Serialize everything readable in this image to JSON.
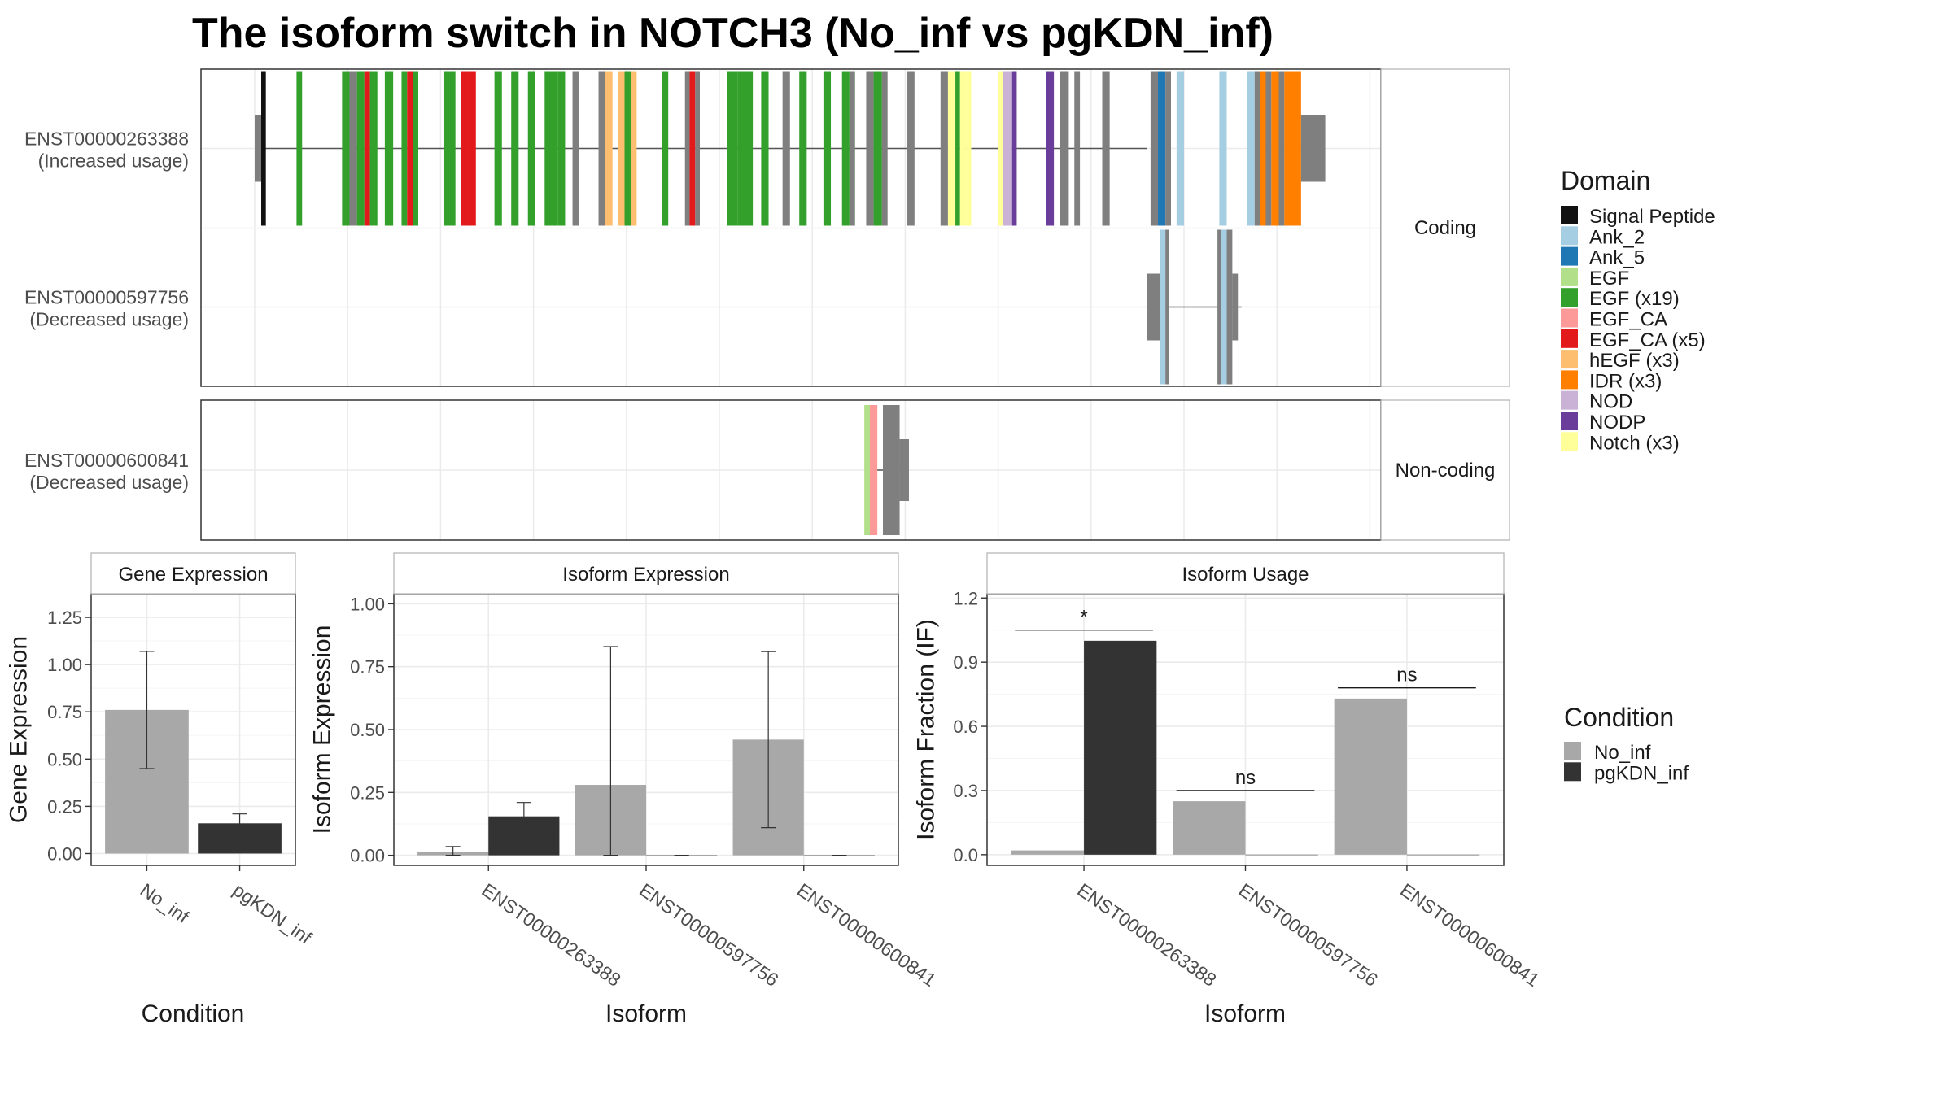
{
  "title": "The isoform switch in NOTCH3 (No_inf vs pgKDN_inf)",
  "colors": {
    "no_inf": "#a8a8a8",
    "pgkdn_inf": "#333333",
    "exon": "#7f7f7f",
    "intron": "#555555",
    "grid": "#ebebeb",
    "border": "#333333"
  },
  "structure": {
    "coord_range": [
      0,
      100
    ],
    "facets": [
      {
        "label": "Coding",
        "tracks": 2
      },
      {
        "label": "Non-coding",
        "tracks": 1
      }
    ],
    "transcripts": [
      {
        "id": "ENST00000263388",
        "usage": "(Increased usage)",
        "facet": 0,
        "track": 0,
        "intron": [
          0,
          96
        ],
        "exons": [
          {
            "s": 0,
            "e": 0.7,
            "t": "utr"
          },
          {
            "s": 0.7,
            "e": 1.2,
            "d": "Signal Peptide"
          },
          {
            "s": 4.5,
            "e": 5.1,
            "d": "EGF (x19)"
          },
          {
            "s": 9.4,
            "e": 10.2,
            "d": "EGF (x19)"
          },
          {
            "s": 10.2,
            "e": 11.0
          },
          {
            "s": 11.0,
            "e": 11.8,
            "d": "EGF (x19)"
          },
          {
            "s": 11.8,
            "e": 12.4,
            "d": "EGF_CA (x5)"
          },
          {
            "s": 12.4,
            "e": 13.2,
            "d": "EGF (x19)"
          },
          {
            "s": 14.0,
            "e": 14.9,
            "d": "EGF (x19)"
          },
          {
            "s": 15.8,
            "e": 16.4,
            "d": "EGF (x19)"
          },
          {
            "s": 16.4,
            "e": 17.0,
            "d": "EGF_CA (x5)"
          },
          {
            "s": 17.0,
            "e": 17.6,
            "d": "EGF (x19)"
          },
          {
            "s": 20.4,
            "e": 21.6,
            "d": "EGF (x19)"
          },
          {
            "s": 22.2,
            "e": 22.9,
            "d": "EGF_CA (x5)"
          },
          {
            "s": 22.9,
            "e": 23.8,
            "d": "EGF_CA (x5)"
          },
          {
            "s": 25.8,
            "e": 26.6,
            "d": "EGF (x19)"
          },
          {
            "s": 27.6,
            "e": 28.4,
            "d": "EGF (x19)"
          },
          {
            "s": 29.4,
            "e": 30.2,
            "d": "EGF (x19)"
          },
          {
            "s": 31.2,
            "e": 32.6,
            "d": "EGF (x19)"
          },
          {
            "s": 32.6,
            "e": 33.4,
            "d": "EGF (x19)"
          },
          {
            "s": 34.2,
            "e": 34.9
          },
          {
            "s": 37.0,
            "e": 37.7
          },
          {
            "s": 37.7,
            "e": 38.5,
            "d": "hEGF (x3)"
          },
          {
            "s": 39.1,
            "e": 39.8,
            "d": "hEGF (x3)"
          },
          {
            "s": 39.8,
            "e": 40.5,
            "d": "EGF (x19)"
          },
          {
            "s": 40.5,
            "e": 41.1,
            "d": "hEGF (x3)"
          },
          {
            "s": 43.8,
            "e": 44.5,
            "d": "EGF (x19)"
          },
          {
            "s": 46.3,
            "e": 46.8
          },
          {
            "s": 46.8,
            "e": 47.4,
            "d": "EGF_CA (x5)"
          },
          {
            "s": 47.4,
            "e": 47.9
          },
          {
            "s": 50.8,
            "e": 52.0,
            "d": "EGF (x19)"
          },
          {
            "s": 52.0,
            "e": 52.8,
            "d": "EGF (x19)"
          },
          {
            "s": 52.8,
            "e": 53.6,
            "d": "EGF (x19)"
          },
          {
            "s": 54.5,
            "e": 55.3,
            "d": "EGF (x19)"
          },
          {
            "s": 56.8,
            "e": 57.6
          },
          {
            "s": 58.6,
            "e": 59.4,
            "d": "EGF (x19)"
          },
          {
            "s": 61.2,
            "e": 62.0,
            "d": "EGF (x19)"
          },
          {
            "s": 63.2,
            "e": 64.0,
            "d": "EGF (x19)"
          },
          {
            "s": 64.0,
            "e": 64.6
          },
          {
            "s": 65.8,
            "e": 66.6
          },
          {
            "s": 66.6,
            "e": 67.5,
            "d": "EGF (x19)"
          },
          {
            "s": 67.5,
            "e": 68.1
          },
          {
            "s": 70.2,
            "e": 71.0
          },
          {
            "s": 73.8,
            "e": 74.6
          },
          {
            "s": 74.6,
            "e": 75.4,
            "d": "Notch (x3)"
          },
          {
            "s": 75.4,
            "e": 75.9,
            "d": "EGF (x19)"
          },
          {
            "s": 75.9,
            "e": 76.6,
            "d": "Notch (x3)"
          },
          {
            "s": 76.6,
            "e": 77.1,
            "d": "Notch (x3)"
          },
          {
            "s": 80.0,
            "e": 80.5,
            "d": "Notch (x3)"
          },
          {
            "s": 80.5,
            "e": 81.5,
            "d": "NOD"
          },
          {
            "s": 81.5,
            "e": 82.0,
            "d": "NODP"
          },
          {
            "s": 85.2,
            "e": 86.0,
            "d": "NODP"
          },
          {
            "s": 86.6,
            "e": 87.6
          },
          {
            "s": 88.2,
            "e": 88.8
          },
          {
            "s": 91.2,
            "e": 92.0
          },
          {
            "s": 96.4,
            "e": 97.2
          },
          {
            "s": 97.2,
            "e": 98.0,
            "d": "Ank_5"
          },
          {
            "s": 98.0,
            "e": 98.6
          },
          {
            "s": 99.2,
            "e": 100.0,
            "d": "Ank_2"
          },
          {
            "s": 103.8,
            "e": 104.6,
            "d": "Ank_2"
          },
          {
            "s": 106.8,
            "e": 107.6,
            "d": "Ank_2"
          },
          {
            "s": 107.6,
            "e": 108.2
          },
          {
            "s": 108.2,
            "e": 108.8,
            "d": "IDR (x3)"
          },
          {
            "s": 108.8,
            "e": 109.4
          },
          {
            "s": 109.4,
            "e": 110.2,
            "d": "IDR (x3)"
          },
          {
            "s": 110.2,
            "e": 110.8
          },
          {
            "s": 110.8,
            "e": 112.6,
            "d": "IDR (x3)"
          },
          {
            "s": 112.6,
            "e": 115.2,
            "t": "utr"
          }
        ]
      },
      {
        "id": "ENST00000597756",
        "usage": "(Decreased usage)",
        "facet": 0,
        "track": 1,
        "intron": [
          97.2,
          106.2
        ],
        "exons": [
          {
            "s": 96.0,
            "e": 97.4,
            "t": "utr"
          },
          {
            "s": 97.4,
            "e": 98.0,
            "d": "Ank_2"
          },
          {
            "s": 98.0,
            "e": 98.4
          },
          {
            "s": 103.6,
            "e": 104.0
          },
          {
            "s": 104.0,
            "e": 104.6,
            "d": "Ank_2"
          },
          {
            "s": 104.6,
            "e": 105.2
          },
          {
            "s": 105.2,
            "e": 105.8,
            "t": "utr"
          }
        ]
      },
      {
        "id": "ENST00000600841",
        "usage": "(Decreased usage)",
        "facet": 1,
        "track": 0,
        "intron": [
          66.5,
          70.0
        ],
        "exons": [
          {
            "s": 65.6,
            "e": 66.2,
            "d": "EGF"
          },
          {
            "s": 66.2,
            "e": 67.0,
            "d": "EGF_CA"
          },
          {
            "s": 67.6,
            "e": 69.4
          },
          {
            "s": 69.4,
            "e": 70.4,
            "t": "utr"
          }
        ]
      }
    ]
  },
  "legends": {
    "domain": {
      "title": "Domain",
      "items": [
        {
          "label": "Signal Peptide",
          "color": "#111111"
        },
        {
          "label": "Ank_2",
          "color": "#a6cee3"
        },
        {
          "label": "Ank_5",
          "color": "#1f78b4"
        },
        {
          "label": "EGF",
          "color": "#b2df8a"
        },
        {
          "label": "EGF (x19)",
          "color": "#33a02c"
        },
        {
          "label": "EGF_CA",
          "color": "#fb9a99"
        },
        {
          "label": "EGF_CA (x5)",
          "color": "#e31a1c"
        },
        {
          "label": "hEGF (x3)",
          "color": "#fdbf6f"
        },
        {
          "label": "IDR (x3)",
          "color": "#ff7f00"
        },
        {
          "label": "NOD",
          "color": "#cab2d6"
        },
        {
          "label": "NODP",
          "color": "#6a3d9a"
        },
        {
          "label": "Notch (x3)",
          "color": "#ffff99"
        }
      ]
    },
    "condition": {
      "title": "Condition",
      "items": [
        {
          "label": "No_inf",
          "color": "#a8a8a8"
        },
        {
          "label": "pgKDN_inf",
          "color": "#333333"
        }
      ]
    }
  },
  "chart_data": [
    {
      "type": "bar",
      "title": "Gene Expression",
      "xlabel": "Condition",
      "ylabel": "Gene Expression",
      "ylim": [
        -0.0625,
        1.375
      ],
      "yticks": [
        0,
        0.25,
        0.5,
        0.75,
        1,
        1.25
      ],
      "tick_labels": [
        "0.00",
        "0.25",
        "0.50",
        "0.75",
        "1.00",
        "1.25"
      ],
      "categories": [
        "No_inf",
        "pgKDN_inf"
      ],
      "series": [
        {
          "name": "No_inf",
          "values": [
            0.76,
            null
          ],
          "err_low": [
            0.45,
            null
          ],
          "err_high": [
            1.07,
            null
          ]
        },
        {
          "name": "pgKDN_inf",
          "values": [
            null,
            0.16
          ],
          "err_low": [
            null,
            0.11
          ],
          "err_high": [
            null,
            0.21
          ]
        }
      ]
    },
    {
      "type": "bar",
      "title": "Isoform Expression",
      "xlabel": "Isoform",
      "ylabel": "Isoform Expression",
      "ylim": [
        -0.04,
        1.04
      ],
      "yticks": [
        0,
        0.25,
        0.5,
        0.75,
        1
      ],
      "tick_labels": [
        "0.00",
        "0.25",
        "0.50",
        "0.75",
        "1.00"
      ],
      "categories": [
        "ENST00000263388",
        "ENST00000597756",
        "ENST00000600841"
      ],
      "series": [
        {
          "name": "No_inf",
          "values": [
            0.015,
            0.28,
            0.46
          ],
          "err_low": [
            0.0,
            0.0,
            0.11
          ],
          "err_high": [
            0.035,
            0.83,
            0.81
          ]
        },
        {
          "name": "pgKDN_inf",
          "values": [
            0.155,
            0.0,
            0.0
          ],
          "err_low": [
            0.105,
            0.0,
            0.0
          ],
          "err_high": [
            0.21,
            0.0,
            0.0
          ]
        }
      ]
    },
    {
      "type": "bar",
      "title": "Isoform Usage",
      "xlabel": "Isoform",
      "ylabel": "Isoform Fraction (IF)",
      "ylim": [
        -0.05,
        1.22
      ],
      "yticks": [
        0,
        0.3,
        0.6,
        0.9,
        1.2
      ],
      "tick_labels": [
        "0.0",
        "0.3",
        "0.6",
        "0.9",
        "1.2"
      ],
      "categories": [
        "ENST00000263388",
        "ENST00000597756",
        "ENST00000600841"
      ],
      "series": [
        {
          "name": "No_inf",
          "values": [
            0.02,
            0.25,
            0.73
          ]
        },
        {
          "name": "pgKDN_inf",
          "values": [
            1.0,
            0.0,
            0.0
          ]
        }
      ],
      "annotations": [
        {
          "category": 0,
          "y": 1.05,
          "label": "*"
        },
        {
          "category": 1,
          "y": 0.3,
          "label": "ns"
        },
        {
          "category": 2,
          "y": 0.78,
          "label": "ns"
        }
      ]
    }
  ]
}
